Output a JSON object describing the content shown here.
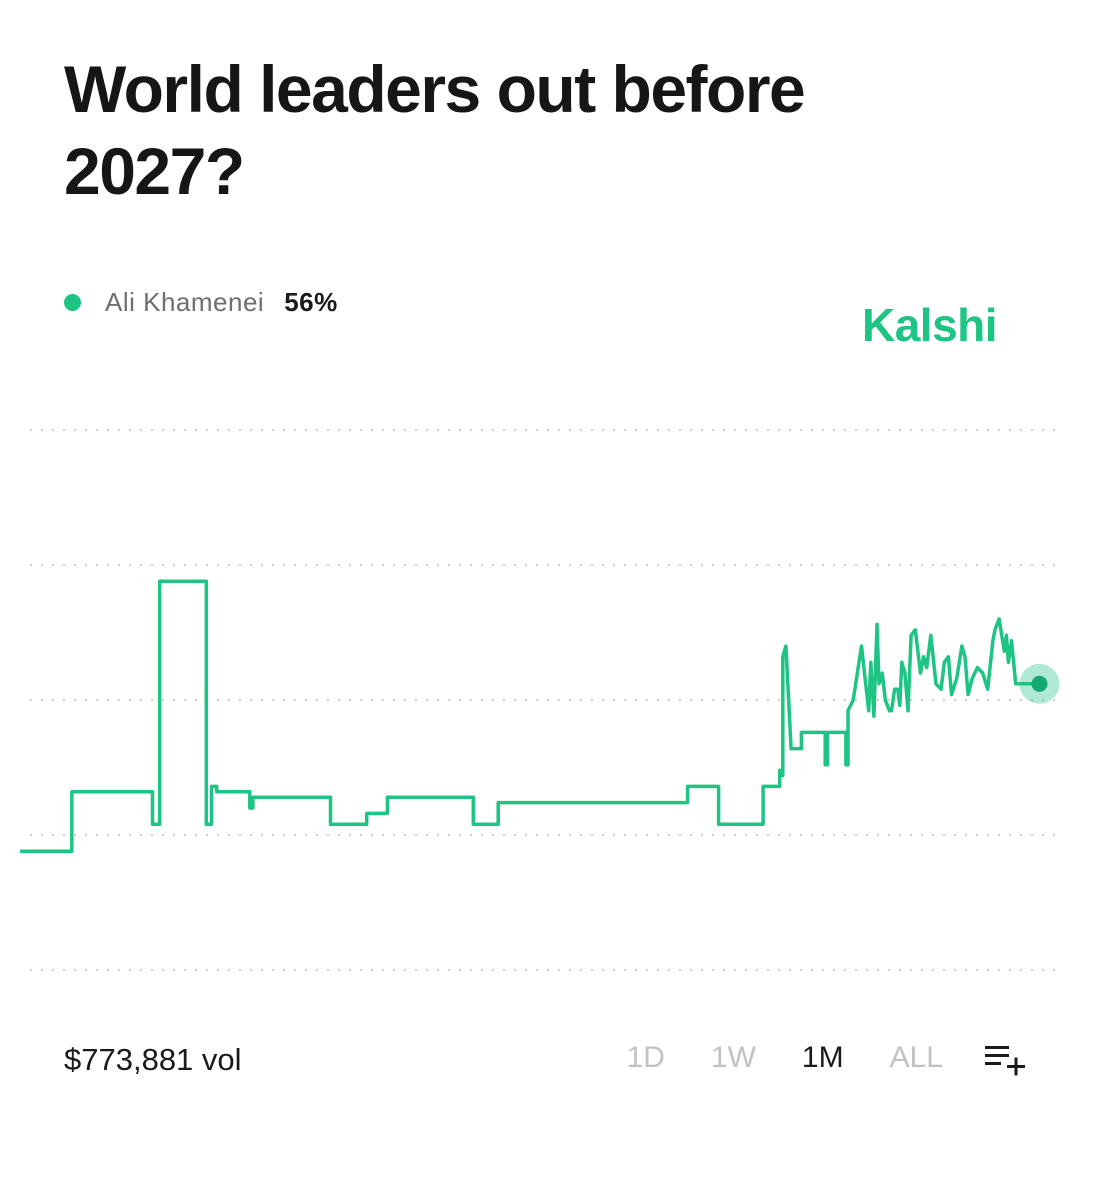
{
  "title": "World leaders out before 2027?",
  "legend": {
    "name": "Ali Khamenei",
    "value": "56%",
    "color": "#1ec483"
  },
  "brand": {
    "name": "Kalshi",
    "color": "#1ec483"
  },
  "footer": {
    "volume": "$773,881 vol",
    "ranges": [
      "1D",
      "1W",
      "1M",
      "ALL"
    ],
    "active_range": "1M",
    "icon": "list-add-icon"
  },
  "chart_data": {
    "type": "line",
    "title": "",
    "xlabel": "",
    "ylabel": "",
    "ylim": [
      0,
      100
    ],
    "grid": true,
    "legend_position": "top-left",
    "series": [
      {
        "name": "Ali Khamenei",
        "color": "#1ec483",
        "x": [
          0,
          0.05,
          0.05,
          0.128,
          0.128,
          0.135,
          0.135,
          0.18,
          0.18,
          0.185,
          0.185,
          0.19,
          0.19,
          0.222,
          0.222,
          0.225,
          0.225,
          0.3,
          0.3,
          0.335,
          0.335,
          0.355,
          0.355,
          0.438,
          0.438,
          0.462,
          0.462,
          0.645,
          0.645,
          0.675,
          0.675,
          0.718,
          0.718,
          0.734,
          0.734,
          0.737,
          0.737,
          0.74,
          0.745,
          0.755,
          0.755,
          0.778,
          0.778,
          0.78,
          0.78,
          0.798,
          0.798,
          0.8,
          0.8,
          0.805,
          0.813,
          0.82,
          0.822,
          0.825,
          0.828,
          0.83,
          0.833,
          0.836,
          0.84,
          0.842,
          0.845,
          0.848,
          0.85,
          0.852,
          0.855,
          0.858,
          0.861,
          0.865,
          0.87,
          0.873,
          0.876,
          0.88,
          0.885,
          0.89,
          0.893,
          0.897,
          0.9,
          0.905,
          0.91,
          0.913,
          0.916,
          0.92,
          0.925,
          0.93,
          0.935,
          0.94,
          0.942,
          0.946,
          0.951,
          0.953,
          0.955,
          0.958,
          0.962,
          0.966,
          0.97,
          0.975,
          0.98,
          0.985
        ],
        "values": [
          22,
          22,
          33,
          33,
          27,
          27,
          72,
          72,
          27,
          27,
          34,
          34,
          33,
          33,
          30,
          30,
          32,
          32,
          27,
          27,
          29,
          29,
          32,
          32,
          27,
          27,
          31,
          31,
          34,
          34,
          27,
          27,
          34,
          34,
          37,
          36,
          58,
          60,
          41,
          41,
          44,
          44,
          38,
          38,
          44,
          44,
          38,
          38,
          48,
          50,
          60,
          48,
          57,
          47,
          64,
          53,
          55,
          50,
          48,
          48,
          52,
          52,
          49,
          57,
          55,
          48,
          62,
          63,
          55,
          58,
          56,
          62,
          53,
          52,
          57,
          58,
          51,
          54,
          60,
          58,
          51,
          54,
          56,
          55,
          52,
          61,
          63,
          65,
          59,
          62,
          57,
          61,
          53,
          53,
          53,
          53,
          53,
          53
        ]
      }
    ]
  }
}
